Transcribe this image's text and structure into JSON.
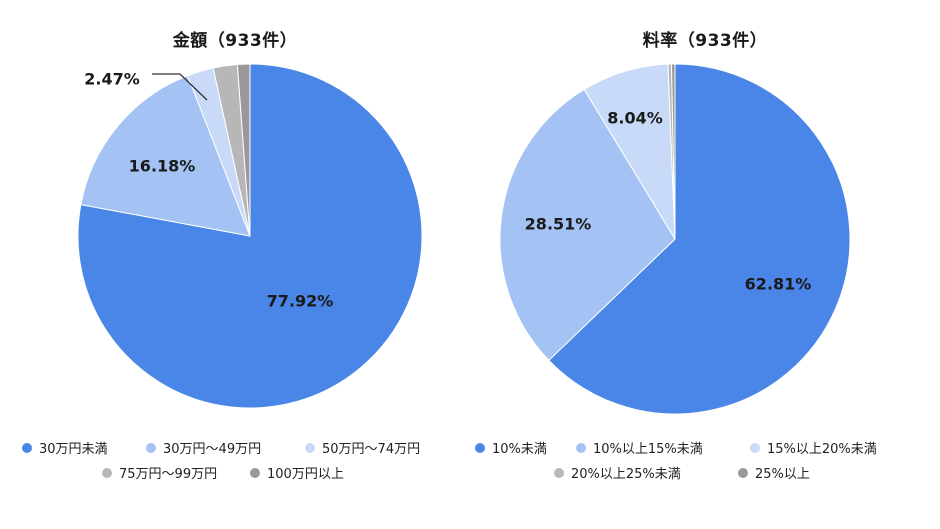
{
  "chart_data": [
    {
      "type": "pie",
      "title": "金額（933件）",
      "categories": [
        "30万円未満",
        "30万円～49万円",
        "50万円～74万円",
        "75万円～99万円",
        "100万円以上"
      ],
      "values": [
        77.92,
        16.18,
        2.47,
        2.26,
        1.17
      ],
      "value_labels": [
        "77.92%",
        "16.18%",
        "2.47%",
        "",
        ""
      ],
      "colors": [
        "#4a86e8",
        "#a4c2f4",
        "#c9daf8",
        "#b7b7b7",
        "#999999"
      ],
      "legend_position": "bottom"
    },
    {
      "type": "pie",
      "title": "料率（933件）",
      "categories": [
        "10%未満",
        "10%以上15%未満",
        "15%以上20%未満",
        "20%以上25%未満",
        "25%以上"
      ],
      "values": [
        62.81,
        28.51,
        8.04,
        0.32,
        0.32
      ],
      "value_labels": [
        "62.81%",
        "28.51%",
        "8.04%",
        "",
        ""
      ],
      "colors": [
        "#4a86e8",
        "#a4c2f4",
        "#c9daf8",
        "#b7b7b7",
        "#999999"
      ],
      "legend_position": "bottom"
    }
  ]
}
